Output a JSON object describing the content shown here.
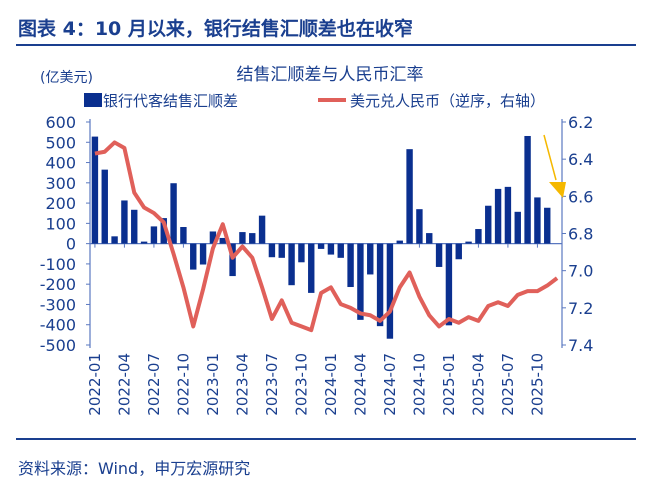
{
  "header": {
    "title": "图表 4：10 月以来，银行结售汇顺差也在收窄"
  },
  "footer": {
    "source": "资料来源：Wind，申万宏源研究"
  },
  "colors": {
    "bar": "#0a2f8f",
    "line": "#e0605a",
    "arrow": "#f5b800",
    "text": "#1a3f8f"
  },
  "chart_data": {
    "type": "bar+line",
    "title": "结售汇顺差与人民币汇率",
    "ylabel_left": "(亿美元)",
    "ylim_left": [
      -500,
      600
    ],
    "yticks_left": [
      "600",
      "500",
      "400",
      "300",
      "200",
      "100",
      "0",
      "-100",
      "-200",
      "-300",
      "-400",
      "-500"
    ],
    "ylim_right": [
      6.2,
      7.4
    ],
    "right_reversed": true,
    "yticks_right": [
      "6.2",
      "6.4",
      "6.6",
      "6.8",
      "7.0",
      "7.2",
      "7.4"
    ],
    "xtick_labels": [
      "2022-01",
      "2022-04",
      "2022-07",
      "2022-10",
      "2023-01",
      "2023-04",
      "2023-07",
      "2023-10",
      "2024-01",
      "2024-04",
      "2024-07",
      "2024-10",
      "2025-01",
      "2025-04",
      "2025-07",
      "2025-10"
    ],
    "series": [
      {
        "name": "银行代客结售汇顺差",
        "type": "bar",
        "axis": "left",
        "values": [
          528,
          365,
          36,
          213,
          167,
          10,
          85,
          126,
          298,
          82,
          -128,
          -103,
          60,
          28,
          -160,
          57,
          52,
          138,
          -67,
          -70,
          -205,
          -92,
          -243,
          -26,
          -54,
          -70,
          -214,
          -376,
          -152,
          -407,
          -469,
          15,
          466,
          170,
          52,
          -115,
          -403,
          -77,
          10,
          72,
          187,
          270,
          280,
          157,
          531,
          228,
          177
        ]
      },
      {
        "name": "美元兑人民币（逆序，右轴）",
        "type": "line",
        "axis": "right",
        "values": [
          6.37,
          6.36,
          6.31,
          6.34,
          6.58,
          6.66,
          6.69,
          6.74,
          6.91,
          7.09,
          7.3,
          7.1,
          6.88,
          6.75,
          6.93,
          6.87,
          6.93,
          7.09,
          7.26,
          7.16,
          7.28,
          7.3,
          7.32,
          7.12,
          7.09,
          7.18,
          7.2,
          7.23,
          7.24,
          7.27,
          7.22,
          7.09,
          7.01,
          7.14,
          7.24,
          7.3,
          7.26,
          7.28,
          7.25,
          7.27,
          7.19,
          7.17,
          7.19,
          7.13,
          7.11,
          7.11,
          7.08,
          7.04
        ]
      }
    ],
    "start_month": "2022-01",
    "legend": "top",
    "grid": false
  }
}
